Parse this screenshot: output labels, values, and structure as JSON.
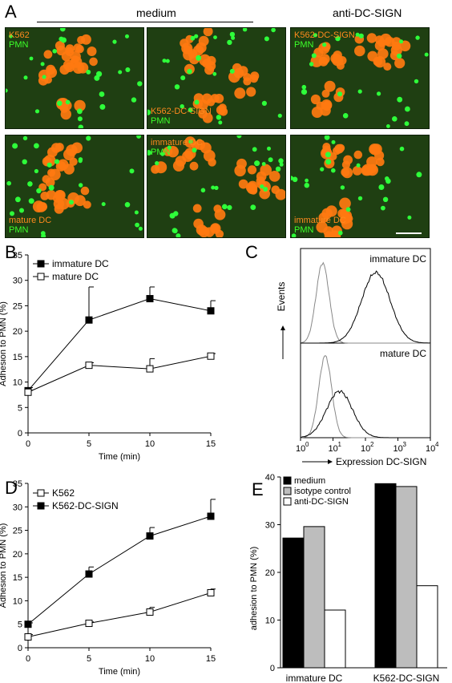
{
  "panel_A": {
    "letter": "A",
    "headers": {
      "medium": "medium",
      "anti": "anti-DC-SIGN"
    },
    "images": [
      {
        "label_top": "K562",
        "label_bottom": "PMN",
        "pos": "top"
      },
      {
        "label_top": "K562-DC-SIGN",
        "label_bottom": "PMN",
        "pos": "bottom"
      },
      {
        "label_top": "K562-DC-SIGN",
        "label_bottom": "PMN",
        "pos": "top"
      },
      {
        "label_top": "mature DC",
        "label_bottom": "PMN",
        "pos": "bottom"
      },
      {
        "label_top": "immature DC",
        "label_bottom": "PMN",
        "pos": "top"
      },
      {
        "label_top": "immature DC",
        "label_bottom": "PMN",
        "pos": "bottom"
      }
    ],
    "colors": {
      "background": "#1f3f12",
      "orange_cells": "#ff7a10",
      "green_cells": "#2eff3a"
    }
  },
  "panel_B": {
    "letter": "B",
    "chart_data": {
      "type": "line",
      "x": [
        0,
        5,
        10,
        15
      ],
      "series": [
        {
          "name": "immature DC",
          "marker": "filled-square",
          "values": [
            8.3,
            22.2,
            26.4,
            24.0
          ],
          "error": [
            0.6,
            6.5,
            2.3,
            2.0
          ]
        },
        {
          "name": "mature DC",
          "marker": "open-square",
          "values": [
            8.0,
            13.3,
            12.6,
            15.1
          ],
          "error": [
            0.4,
            0.5,
            2.0,
            0.5
          ]
        }
      ],
      "xlabel": "Time (min)",
      "ylabel": "Adhesion to PMN (%)",
      "xlim": [
        0,
        15
      ],
      "ylim": [
        0,
        35
      ],
      "xticks": [
        0,
        5,
        10,
        15
      ],
      "yticks": [
        0,
        5,
        10,
        15,
        20,
        25,
        30,
        35
      ],
      "legend": "top-left"
    }
  },
  "panel_C": {
    "letter": "C",
    "chart_data": {
      "type": "histogram",
      "panels": [
        "immature DC",
        "mature DC"
      ],
      "xlabel": "Expression DC-SIGN",
      "ylabel": "Events",
      "xticks": [
        "10",
        "10",
        "10",
        "10",
        "10"
      ],
      "xtick_exponents": [
        "0",
        "1",
        "2",
        "3",
        "4"
      ],
      "x_scale": "log"
    }
  },
  "panel_D": {
    "letter": "D",
    "chart_data": {
      "type": "line",
      "x": [
        0,
        5,
        10,
        15
      ],
      "series": [
        {
          "name": "K562",
          "marker": "open-square",
          "values": [
            2.3,
            5.2,
            7.6,
            11.7
          ],
          "error": [
            0.5,
            0.3,
            1.0,
            0.8
          ]
        },
        {
          "name": "K562-DC-SIGN",
          "marker": "filled-square",
          "values": [
            5.0,
            15.7,
            23.8,
            28.0
          ],
          "error": [
            0.3,
            1.5,
            1.8,
            3.6
          ]
        }
      ],
      "xlabel": "Time (min)",
      "ylabel": "Adhesion to PMN (%)",
      "xlim": [
        0,
        15
      ],
      "ylim": [
        0,
        35
      ],
      "xticks": [
        0,
        5,
        10,
        15
      ],
      "yticks": [
        0,
        5,
        10,
        15,
        20,
        25,
        30,
        35
      ],
      "legend": "top-left"
    }
  },
  "panel_E": {
    "letter": "E",
    "chart_data": {
      "type": "bar",
      "categories": [
        "immature DC",
        "K562-DC-SIGN"
      ],
      "series": [
        {
          "name": "medium",
          "color": "#000000",
          "values": [
            27.2,
            38.6
          ]
        },
        {
          "name": "isotype control",
          "color": "#bdbdbd",
          "values": [
            29.6,
            38.0
          ]
        },
        {
          "name": "anti-DC-SIGN",
          "color": "#ffffff",
          "values": [
            12.1,
            17.2
          ]
        }
      ],
      "ylabel": "adhesion to PMN (%)",
      "ylim": [
        0,
        40
      ],
      "yticks": [
        0,
        10,
        20,
        30,
        40
      ],
      "legend": "top-left"
    }
  }
}
